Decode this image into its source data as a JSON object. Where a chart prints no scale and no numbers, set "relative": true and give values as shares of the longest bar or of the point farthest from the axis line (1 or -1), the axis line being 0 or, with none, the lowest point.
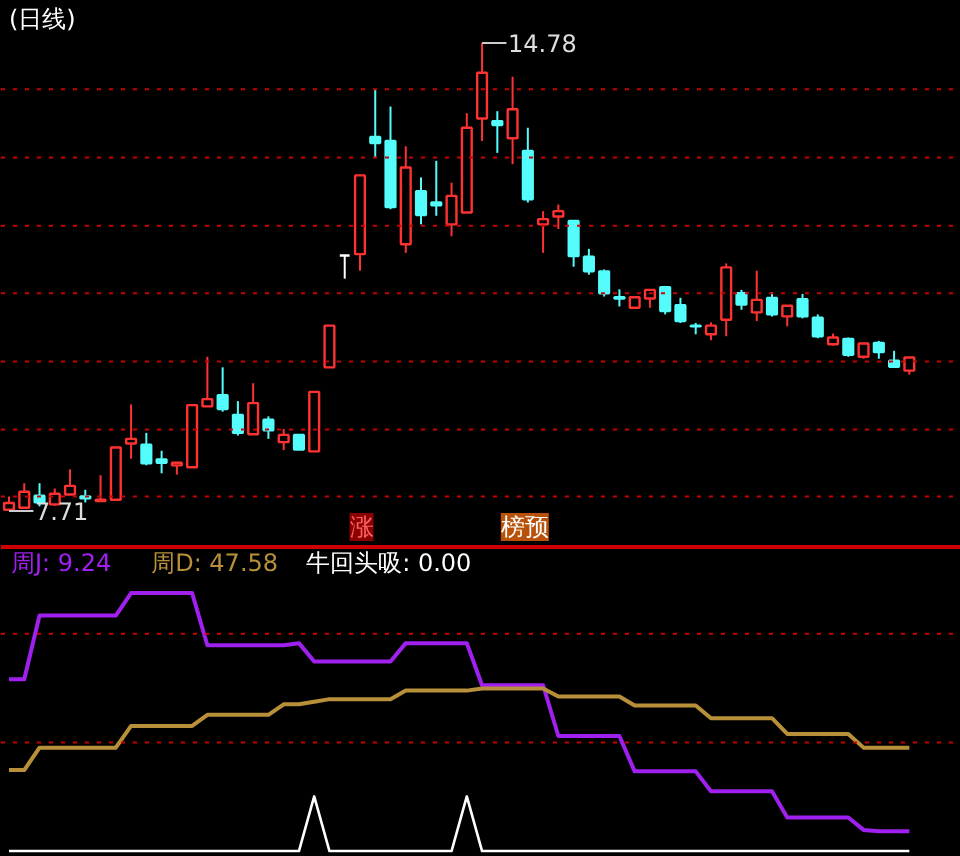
{
  "chart_data": [
    {
      "type": "candlestick",
      "title": "(日线)",
      "tick_labels": false,
      "categories": [
        null,
        null,
        null,
        null,
        null,
        null,
        null,
        null,
        null,
        null,
        null,
        null,
        null,
        null,
        null,
        null,
        null,
        null,
        null,
        null,
        null,
        null,
        null,
        null,
        null,
        null,
        null,
        null,
        null,
        null,
        null,
        null,
        null,
        null,
        null,
        null,
        null,
        null,
        null,
        null,
        null,
        null,
        null,
        null,
        null,
        null,
        null,
        null,
        null,
        null,
        null,
        null,
        null,
        null,
        null,
        null,
        null,
        null,
        null,
        null
      ],
      "ohlc": [
        [
          7.73,
          7.93,
          7.71,
          7.83
        ],
        [
          7.76,
          8.13,
          7.76,
          8.0
        ],
        [
          7.94,
          8.13,
          7.78,
          7.84
        ],
        [
          7.81,
          8.05,
          7.79,
          7.97
        ],
        [
          7.96,
          8.34,
          7.96,
          8.09
        ],
        [
          7.93,
          8.03,
          7.84,
          7.9
        ],
        [
          7.86,
          8.25,
          7.86,
          7.88
        ],
        [
          7.88,
          8.67,
          7.88,
          8.67
        ],
        [
          8.73,
          9.32,
          8.5,
          8.8
        ],
        [
          8.71,
          8.89,
          8.4,
          8.43
        ],
        [
          8.49,
          8.62,
          8.28,
          8.44
        ],
        [
          8.4,
          8.44,
          8.26,
          8.44
        ],
        [
          8.37,
          9.31,
          8.37,
          9.31
        ],
        [
          9.29,
          10.04,
          9.29,
          9.4
        ],
        [
          9.46,
          9.88,
          9.21,
          9.25
        ],
        [
          9.16,
          9.37,
          8.85,
          8.89
        ],
        [
          8.87,
          9.64,
          8.87,
          9.34
        ],
        [
          9.09,
          9.14,
          8.8,
          8.93
        ],
        [
          8.75,
          8.95,
          8.63,
          8.86
        ],
        [
          8.86,
          8.86,
          8.64,
          8.64
        ],
        [
          8.61,
          9.51,
          8.61,
          9.51
        ],
        [
          9.88,
          10.51,
          9.88,
          10.51
        ],
        [
          11.57,
          11.57,
          11.22,
          11.57
        ],
        [
          11.59,
          12.78,
          11.34,
          12.78
        ],
        [
          13.36,
          14.08,
          13.05,
          13.27
        ],
        [
          13.3,
          13.82,
          12.27,
          12.3
        ],
        [
          11.74,
          13.22,
          11.61,
          12.9
        ],
        [
          12.54,
          12.75,
          12.04,
          12.18
        ],
        [
          12.37,
          13.0,
          12.17,
          12.33
        ],
        [
          12.04,
          12.67,
          11.86,
          12.47
        ],
        [
          12.22,
          13.72,
          12.22,
          13.5
        ],
        [
          13.64,
          14.78,
          13.3,
          14.33
        ],
        [
          13.6,
          13.75,
          13.12,
          13.54
        ],
        [
          13.34,
          14.27,
          12.95,
          13.78
        ],
        [
          13.15,
          13.5,
          12.37,
          12.42
        ],
        [
          12.04,
          12.24,
          11.61,
          12.12
        ],
        [
          12.16,
          12.34,
          11.97,
          12.24
        ],
        [
          12.09,
          12.09,
          11.4,
          11.56
        ],
        [
          11.55,
          11.67,
          11.28,
          11.33
        ],
        [
          11.33,
          11.36,
          10.95,
          11.0
        ],
        [
          10.94,
          11.06,
          10.8,
          10.92
        ],
        [
          10.78,
          10.94,
          10.78,
          10.94
        ],
        [
          10.92,
          11.05,
          10.78,
          11.05
        ],
        [
          11.09,
          11.11,
          10.68,
          10.73
        ],
        [
          10.82,
          10.93,
          10.55,
          10.58
        ],
        [
          10.51,
          10.55,
          10.38,
          10.5
        ],
        [
          10.38,
          10.56,
          10.29,
          10.51
        ],
        [
          10.6,
          11.45,
          10.35,
          11.39
        ],
        [
          11.0,
          11.05,
          10.75,
          10.83
        ],
        [
          10.71,
          11.34,
          10.58,
          10.9
        ],
        [
          10.93,
          11.02,
          10.65,
          10.68
        ],
        [
          10.65,
          10.81,
          10.5,
          10.81
        ],
        [
          10.91,
          10.99,
          10.62,
          10.65
        ],
        [
          10.63,
          10.68,
          10.32,
          10.35
        ],
        [
          10.23,
          10.39,
          10.21,
          10.33
        ],
        [
          10.31,
          10.33,
          10.04,
          10.07
        ],
        [
          10.04,
          10.24,
          10.01,
          10.24
        ],
        [
          10.25,
          10.28,
          10.01,
          10.11
        ],
        [
          9.98,
          10.13,
          9.89,
          9.89
        ],
        [
          9.83,
          10.03,
          9.77,
          10.03
        ]
      ],
      "colors": [
        "#ff3232",
        "#ff3232",
        "#54fcfc",
        "#ff3232",
        "#ff3232",
        "#54fcfc",
        "#ff3232",
        "#ff3232",
        "#ff3232",
        "#54fcfc",
        "#54fcfc",
        "#ff3232",
        "#ff3232",
        "#ff3232",
        "#54fcfc",
        "#54fcfc",
        "#ff3232",
        "#54fcfc",
        "#ff3232",
        "#54fcfc",
        "#ff3232",
        "#ff3232",
        "#ffffff",
        "#ff3232",
        "#54fcfc",
        "#54fcfc",
        "#ff3232",
        "#54fcfc",
        "#54fcfc",
        "#ff3232",
        "#ff3232",
        "#ff3232",
        "#54fcfc",
        "#ff3232",
        "#54fcfc",
        "#ff3232",
        "#ff3232",
        "#54fcfc",
        "#54fcfc",
        "#54fcfc",
        "#54fcfc",
        "#ff3232",
        "#ff3232",
        "#54fcfc",
        "#54fcfc",
        "#54fcfc",
        "#ff3232",
        "#ff3232",
        "#54fcfc",
        "#ff3232",
        "#54fcfc",
        "#ff3232",
        "#54fcfc",
        "#54fcfc",
        "#ff3232",
        "#54fcfc",
        "#ff3232",
        "#54fcfc",
        "#54fcfc",
        "#ff3232"
      ],
      "ref_lines": [
        {
          "axis": "y",
          "value": 14.08,
          "color": "#cc0000",
          "line_style": "dotted"
        },
        {
          "axis": "y",
          "value": 13.05,
          "color": "#cc0000",
          "line_style": "dotted"
        },
        {
          "axis": "y",
          "value": 12.02,
          "color": "#cc0000",
          "line_style": "dotted"
        },
        {
          "axis": "y",
          "value": 11.0,
          "color": "#cc0000",
          "line_style": "dotted"
        },
        {
          "axis": "y",
          "value": 9.97,
          "color": "#cc0000",
          "line_style": "dotted"
        },
        {
          "axis": "y",
          "value": 8.94,
          "color": "#cc0000",
          "line_style": "dotted"
        },
        {
          "axis": "y",
          "value": 7.93,
          "color": "#cc0000",
          "line_style": "dotted"
        }
      ],
      "annotations": [
        "14.78",
        "7.71",
        "涨",
        "榜预"
      ]
    },
    {
      "type": "line",
      "relative": true,
      "tick_labels": false,
      "legend": "top left",
      "line_style": "solid",
      "categories": [
        null,
        null,
        null,
        null,
        null,
        null,
        null,
        null,
        null,
        null,
        null,
        null,
        null,
        null,
        null,
        null,
        null,
        null,
        null,
        null,
        null,
        null,
        null,
        null,
        null,
        null,
        null,
        null,
        null,
        null,
        null,
        null,
        null,
        null,
        null,
        null,
        null,
        null,
        null,
        null,
        null,
        null,
        null,
        null,
        null,
        null,
        null,
        null,
        null,
        null,
        null,
        null,
        null,
        null,
        null,
        null,
        null,
        null,
        null,
        null
      ],
      "series": [
        {
          "name": "周J: 9.24",
          "color": "#a020f0",
          "values": [
            0.666,
            0.666,
            0.913,
            0.913,
            0.913,
            0.913,
            0.913,
            0.913,
            1,
            1,
            1,
            1,
            1,
            0.798,
            0.798,
            0.798,
            0.798,
            0.798,
            0.798,
            0.806,
            0.735,
            0.735,
            0.735,
            0.735,
            0.735,
            0.735,
            0.806,
            0.806,
            0.806,
            0.806,
            0.806,
            0.643,
            0.643,
            0.643,
            0.643,
            0.643,
            0.446,
            0.446,
            0.446,
            0.446,
            0.446,
            0.309,
            0.309,
            0.309,
            0.309,
            0.309,
            0.232,
            0.232,
            0.232,
            0.232,
            0.232,
            0.13,
            0.13,
            0.13,
            0.13,
            0.13,
            0.082,
            0.077,
            0.077,
            0.077
          ]
        },
        {
          "name": "周D: 47.58",
          "color": "#b8903a",
          "values": [
            0.314,
            0.314,
            0.401,
            0.401,
            0.401,
            0.401,
            0.401,
            0.401,
            0.485,
            0.485,
            0.485,
            0.485,
            0.485,
            0.528,
            0.528,
            0.528,
            0.528,
            0.528,
            0.569,
            0.569,
            0.579,
            0.589,
            0.589,
            0.589,
            0.589,
            0.589,
            0.622,
            0.622,
            0.622,
            0.622,
            0.622,
            0.63,
            0.63,
            0.63,
            0.63,
            0.63,
            0.599,
            0.599,
            0.599,
            0.599,
            0.599,
            0.564,
            0.564,
            0.564,
            0.564,
            0.564,
            0.515,
            0.515,
            0.515,
            0.515,
            0.515,
            0.454,
            0.454,
            0.454,
            0.454,
            0.454,
            0.401,
            0.401,
            0.401,
            0.401
          ]
        },
        {
          "name": "牛回头吸: 0.00",
          "color": "#ffffff",
          "values": [
            0,
            0,
            0,
            0,
            0,
            0,
            0,
            0,
            0,
            0,
            0,
            0,
            0,
            0,
            0,
            0,
            0,
            0,
            0,
            0,
            0.212,
            0,
            0,
            0,
            0,
            0,
            0,
            0,
            0,
            0,
            0.212,
            0,
            0,
            0,
            0,
            0,
            0,
            0,
            0,
            0,
            0,
            0,
            0,
            0,
            0,
            0,
            0,
            0,
            0,
            0,
            0,
            0,
            0,
            0,
            0,
            0,
            0,
            0,
            0,
            0
          ]
        }
      ],
      "ref_lines": [
        {
          "axis": "y",
          "value": 0.842,
          "color": "#cc0000",
          "line_style": "dotted"
        },
        {
          "axis": "y",
          "value": 0.421,
          "color": "#cc0000",
          "line_style": "dotted"
        }
      ]
    }
  ]
}
